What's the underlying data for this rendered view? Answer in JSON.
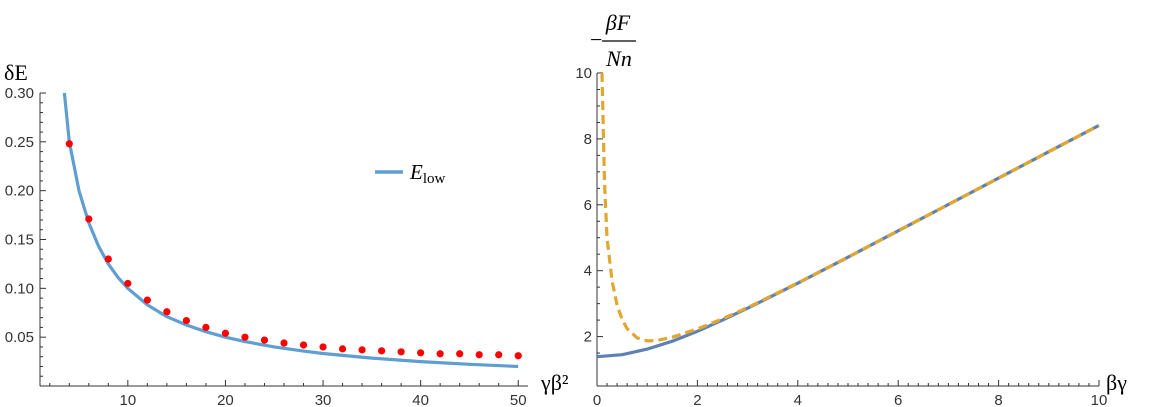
{
  "chart_data": [
    {
      "type": "line",
      "xlabel": "γβ²",
      "ylabel": "δE",
      "xlim": [
        1,
        51
      ],
      "ylim": [
        0,
        0.3
      ],
      "x_ticks": [
        10,
        20,
        30,
        40,
        50
      ],
      "y_ticks": [
        0.05,
        0.1,
        0.15,
        0.2,
        0.25,
        0.3
      ],
      "y_tick_labels": [
        "0.05",
        "0.10",
        "0.15",
        "0.20",
        "0.25",
        "0.30"
      ],
      "grid": false,
      "legend_position": "right",
      "series": [
        {
          "name": "E_low",
          "kind": "line",
          "color": "#5f9ed1",
          "x": [
            3.5,
            4,
            5,
            6,
            7,
            8,
            9,
            10,
            12,
            14,
            16,
            18,
            20,
            22,
            25,
            28,
            30,
            35,
            40,
            45,
            50
          ],
          "y": [
            0.3,
            0.25,
            0.2,
            0.167,
            0.143,
            0.125,
            0.111,
            0.1,
            0.083,
            0.071,
            0.0625,
            0.0556,
            0.05,
            0.0455,
            0.04,
            0.0357,
            0.0333,
            0.0286,
            0.025,
            0.0222,
            0.02
          ]
        },
        {
          "name": "",
          "kind": "scatter",
          "color": "#ff0000",
          "x": [
            4,
            6,
            8,
            10,
            12,
            14,
            16,
            18,
            20,
            22,
            24,
            26,
            28,
            30,
            32,
            34,
            36,
            38,
            40,
            42,
            44,
            46,
            48,
            50
          ],
          "y": [
            0.248,
            0.171,
            0.13,
            0.105,
            0.088,
            0.076,
            0.067,
            0.06,
            0.054,
            0.05,
            0.047,
            0.044,
            0.042,
            0.04,
            0.038,
            0.037,
            0.036,
            0.035,
            0.034,
            0.033,
            0.033,
            0.032,
            0.032,
            0.031
          ]
        }
      ],
      "legend": {
        "label_main": "E",
        "label_sub": "low",
        "color": "#5f9ed1"
      }
    },
    {
      "type": "line",
      "xlabel": "βγ",
      "ylabel_sign": "−",
      "ylabel_numerator": "βF",
      "ylabel_denominator": "Nn",
      "xlim": [
        0,
        10
      ],
      "ylim": [
        0.5,
        10
      ],
      "x_ticks": [
        0,
        2,
        4,
        6,
        8,
        10
      ],
      "y_ticks": [
        2,
        4,
        6,
        8,
        10
      ],
      "grid": false,
      "series": [
        {
          "name": "",
          "kind": "line",
          "color": "#5e81b5",
          "dash": "solid",
          "x": [
            0,
            0.5,
            1,
            1.5,
            2,
            2.5,
            3,
            4,
            5,
            6,
            7,
            8,
            9,
            10
          ],
          "y": [
            1.39,
            1.45,
            1.62,
            1.86,
            2.16,
            2.5,
            2.86,
            3.62,
            4.41,
            5.21,
            6.01,
            6.81,
            7.61,
            8.41
          ]
        },
        {
          "name": "",
          "kind": "line",
          "color": "#e0a731",
          "dash": "dashed",
          "x": [
            0.1,
            0.15,
            0.2,
            0.3,
            0.4,
            0.5,
            0.6,
            0.8,
            1.0,
            1.2,
            1.5,
            2,
            2.5,
            3,
            4,
            5,
            6,
            7,
            8,
            9,
            10
          ],
          "y": [
            10.0,
            6.7,
            5.0,
            3.68,
            2.95,
            2.52,
            2.24,
            1.96,
            1.87,
            1.88,
            1.98,
            2.23,
            2.54,
            2.88,
            3.63,
            4.41,
            5.21,
            6.01,
            6.81,
            7.61,
            8.41
          ]
        }
      ]
    }
  ]
}
